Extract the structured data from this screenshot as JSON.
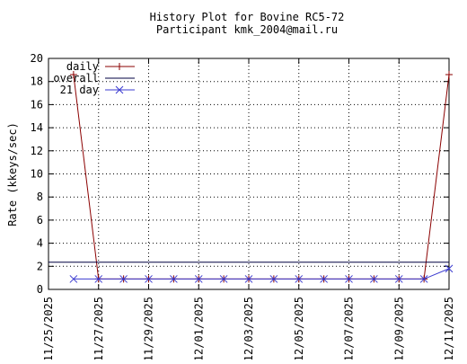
{
  "chart_data": {
    "type": "line",
    "title": "History Plot for Bovine RC5-72",
    "subtitle": "Participant kmk_2004@mail.ru",
    "ylabel": "Rate (kkeys/sec)",
    "xlabel": "",
    "ylim": [
      0,
      20
    ],
    "xlim": [
      "11/25/2025",
      "12/11/2025"
    ],
    "x_ticks": [
      "11/25/2025",
      "11/27/2025",
      "11/29/2025",
      "12/01/2025",
      "12/03/2025",
      "12/05/2025",
      "12/07/2025",
      "12/09/2025",
      "12/11/2025"
    ],
    "y_ticks": [
      0,
      2,
      4,
      6,
      8,
      10,
      12,
      14,
      16,
      18,
      20
    ],
    "grid": true,
    "legend_position": "top-left",
    "x": [
      "11/26/2025",
      "11/27/2025",
      "11/28/2025",
      "11/29/2025",
      "11/30/2025",
      "12/01/2025",
      "12/02/2025",
      "12/03/2025",
      "12/04/2025",
      "12/05/2025",
      "12/06/2025",
      "12/07/2025",
      "12/08/2025",
      "12/09/2025",
      "12/10/2025",
      "12/11/2025"
    ],
    "series": [
      {
        "name": "daily",
        "color": "#8b0000",
        "marker": "plus",
        "values": [
          18.6,
          0.9,
          0.9,
          0.9,
          0.9,
          0.9,
          0.9,
          0.9,
          0.9,
          0.9,
          0.9,
          0.9,
          0.9,
          0.9,
          0.9,
          18.6
        ]
      },
      {
        "name": "overall",
        "color": "#000040",
        "marker": "none",
        "constant": 2.35
      },
      {
        "name": "21 day",
        "color": "#3b3bd0",
        "marker": "cross",
        "values": [
          0.9,
          0.9,
          0.9,
          0.9,
          0.9,
          0.9,
          0.9,
          0.9,
          0.9,
          0.9,
          0.9,
          0.9,
          0.9,
          0.9,
          0.9,
          1.8
        ]
      }
    ]
  }
}
